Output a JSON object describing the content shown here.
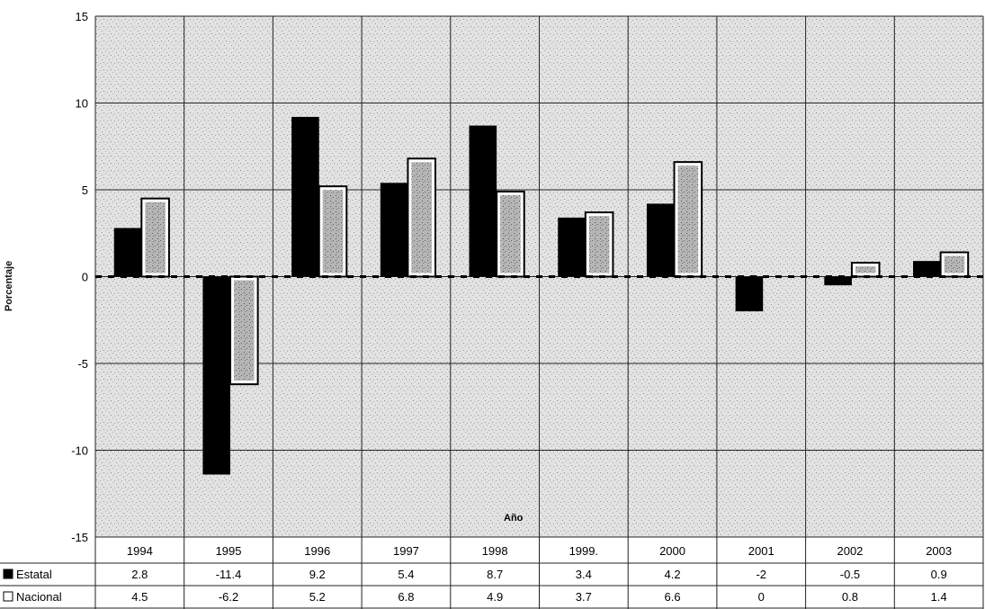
{
  "chart_data": {
    "type": "bar",
    "title": "",
    "xlabel": "Año",
    "ylabel": "Porcentaje",
    "ylim": [
      -15,
      15
    ],
    "yticks": [
      15,
      10,
      5,
      0,
      -5,
      -10,
      -15
    ],
    "grid": true,
    "legend": "left of data table",
    "categories": [
      "1994",
      "1995",
      "1996",
      "1997",
      "1998",
      "1999.",
      "2000",
      "2001",
      "2002",
      "2003"
    ],
    "series": [
      {
        "name": "Estatal",
        "values": [
          2.8,
          -11.4,
          9.2,
          5.4,
          8.7,
          3.4,
          4.2,
          -2,
          -0.5,
          0.9
        ],
        "labels": [
          "2.8",
          "-11.4",
          "9.2",
          "5.4",
          "8.7",
          "3.4",
          "4.2",
          "-2",
          "-0.5",
          "0.9"
        ],
        "color": "#000000"
      },
      {
        "name": "Nacional",
        "values": [
          4.5,
          -6.2,
          5.2,
          6.8,
          4.9,
          3.7,
          6.6,
          0,
          0.8,
          1.4
        ],
        "labels": [
          "4.5",
          "-6.2",
          "5.2",
          "6.8",
          "4.9",
          "3.7",
          "6.6",
          "0",
          "0.8",
          "1.4"
        ],
        "color": "#ffffff"
      }
    ]
  }
}
